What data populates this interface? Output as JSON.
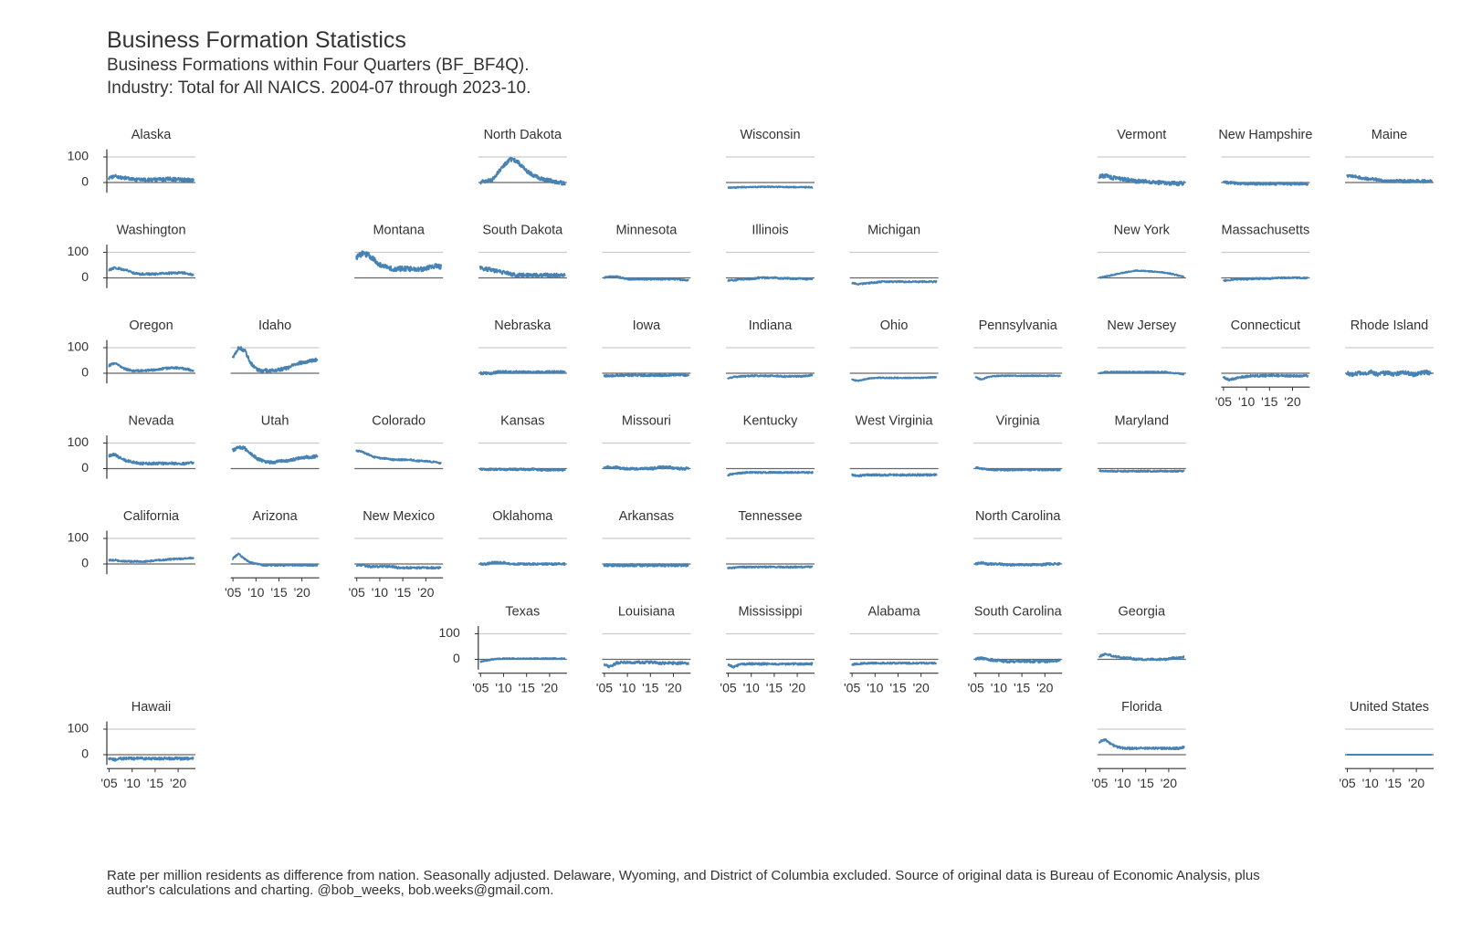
{
  "title": "Business Formation Statistics",
  "subtitle_lines": [
    "Business Formations within Four Quarters (BF_BF4Q).",
    "Industry: Total for All NAICS. 2004-07 through 2023-10."
  ],
  "footnote_lines": [
    "Rate per million residents as difference from nation. Seasonally adjusted. Delaware, Wyoming, and District of Columbia excluded. Source of original data is Bureau of Economic Analysis, plus",
    "author's calculations and charting. @bob_weeks, bob.weeks@gmail.com."
  ],
  "colors": {
    "line": "#4682b4",
    "grid": "#cccccc",
    "zero": "#666666",
    "axis": "#333333",
    "text": "#333333"
  },
  "chart_data": {
    "type": "line",
    "layout": "small-multiples-tile-map",
    "x_range": [
      "2004-07",
      "2023-10"
    ],
    "x_ticks": [
      "'05",
      "'10",
      "'15",
      "'20"
    ],
    "x_tick_years": [
      2005,
      2010,
      2015,
      2020
    ],
    "y_range": [
      -40,
      130
    ],
    "y_ticks": [
      0,
      100
    ],
    "grid": "horizontal at 100",
    "panels": [
      {
        "name": "Alaska",
        "col": 0,
        "row": 0,
        "level": [
          15,
          25,
          20,
          18,
          12,
          10,
          10,
          10,
          12,
          12,
          14,
          12,
          12,
          10,
          10
        ],
        "noise": 7,
        "yaxis": true
      },
      {
        "name": "North Dakota",
        "col": 3,
        "row": 0,
        "level": [
          0,
          5,
          10,
          40,
          70,
          90,
          85,
          60,
          40,
          25,
          15,
          10,
          5,
          0,
          -5
        ],
        "noise": 8
      },
      {
        "name": "Wisconsin",
        "col": 5,
        "row": 0,
        "level": [
          -20,
          -20,
          -18,
          -18,
          -18,
          -17,
          -17,
          -17,
          -17,
          -17,
          -18,
          -18,
          -18,
          -18,
          -19
        ],
        "noise": 2
      },
      {
        "name": "Vermont",
        "col": 8,
        "row": 0,
        "level": [
          25,
          25,
          20,
          15,
          12,
          10,
          5,
          5,
          5,
          0,
          0,
          -3,
          -3,
          -5,
          -2
        ],
        "noise": 8
      },
      {
        "name": "New Hampshire",
        "col": 9,
        "row": 0,
        "level": [
          0,
          0,
          -2,
          -3,
          -5,
          -5,
          -5,
          -5,
          -5,
          -5,
          -5,
          -5,
          -5,
          -5,
          -5
        ],
        "noise": 5
      },
      {
        "name": "Maine",
        "col": 10,
        "row": 0,
        "level": [
          25,
          25,
          20,
          15,
          15,
          10,
          5,
          5,
          5,
          5,
          5,
          5,
          5,
          5,
          5
        ],
        "noise": 6
      },
      {
        "name": "Washington",
        "col": 0,
        "row": 1,
        "level": [
          30,
          40,
          35,
          30,
          20,
          15,
          15,
          15,
          15,
          18,
          18,
          20,
          20,
          18,
          10
        ],
        "noise": 4,
        "yaxis": true
      },
      {
        "name": "Montana",
        "col": 2,
        "row": 1,
        "level": [
          80,
          95,
          90,
          70,
          50,
          40,
          35,
          35,
          35,
          35,
          35,
          35,
          40,
          45,
          45
        ],
        "noise": 10
      },
      {
        "name": "South Dakota",
        "col": 3,
        "row": 1,
        "level": [
          40,
          35,
          30,
          25,
          20,
          15,
          10,
          10,
          10,
          10,
          10,
          10,
          10,
          10,
          10
        ],
        "noise": 8
      },
      {
        "name": "Minnesota",
        "col": 4,
        "row": 1,
        "level": [
          0,
          5,
          5,
          0,
          -5,
          -5,
          -5,
          -5,
          -5,
          -5,
          -5,
          -5,
          -5,
          -8,
          -10
        ],
        "noise": 3
      },
      {
        "name": "Illinois",
        "col": 5,
        "row": 1,
        "level": [
          -10,
          -10,
          -5,
          -5,
          -5,
          0,
          0,
          0,
          0,
          -2,
          -2,
          -3,
          -3,
          -5,
          -5
        ],
        "noise": 3
      },
      {
        "name": "Michigan",
        "col": 6,
        "row": 1,
        "level": [
          -20,
          -25,
          -22,
          -20,
          -18,
          -15,
          -15,
          -15,
          -15,
          -15,
          -15,
          -15,
          -15,
          -15,
          -15
        ],
        "noise": 3
      },
      {
        "name": "New York",
        "col": 8,
        "row": 1,
        "level": [
          0,
          5,
          10,
          15,
          20,
          25,
          28,
          28,
          26,
          25,
          22,
          20,
          15,
          10,
          5
        ],
        "noise": 2
      },
      {
        "name": "Massachusetts",
        "col": 9,
        "row": 1,
        "level": [
          -10,
          -8,
          -5,
          -5,
          -5,
          -3,
          -3,
          -3,
          -2,
          0,
          0,
          0,
          0,
          0,
          0
        ],
        "noise": 3
      },
      {
        "name": "Oregon",
        "col": 0,
        "row": 2,
        "level": [
          30,
          40,
          25,
          15,
          10,
          10,
          10,
          12,
          15,
          18,
          20,
          22,
          20,
          15,
          10
        ],
        "noise": 4,
        "yaxis": true
      },
      {
        "name": "Idaho",
        "col": 1,
        "row": 2,
        "level": [
          60,
          100,
          90,
          40,
          15,
          10,
          10,
          12,
          15,
          20,
          30,
          40,
          45,
          50,
          55
        ],
        "noise": 7
      },
      {
        "name": "Nebraska",
        "col": 3,
        "row": 2,
        "level": [
          0,
          0,
          0,
          5,
          5,
          5,
          5,
          5,
          5,
          5,
          5,
          5,
          5,
          5,
          5
        ],
        "noise": 5
      },
      {
        "name": "Iowa",
        "col": 4,
        "row": 2,
        "level": [
          -10,
          -10,
          -8,
          -8,
          -8,
          -8,
          -8,
          -8,
          -8,
          -8,
          -8,
          -8,
          -5,
          -8,
          -8
        ],
        "noise": 4
      },
      {
        "name": "Indiana",
        "col": 5,
        "row": 2,
        "level": [
          -20,
          -15,
          -12,
          -12,
          -10,
          -10,
          -10,
          -10,
          -10,
          -12,
          -12,
          -12,
          -12,
          -10,
          -8
        ],
        "noise": 3
      },
      {
        "name": "Ohio",
        "col": 6,
        "row": 2,
        "level": [
          -25,
          -30,
          -25,
          -20,
          -18,
          -18,
          -18,
          -18,
          -18,
          -18,
          -18,
          -18,
          -18,
          -16,
          -15
        ],
        "noise": 2
      },
      {
        "name": "Pennsylvania",
        "col": 7,
        "row": 2,
        "level": [
          -15,
          -25,
          -15,
          -12,
          -10,
          -10,
          -10,
          -10,
          -10,
          -10,
          -10,
          -10,
          -10,
          -10,
          -10
        ],
        "noise": 2
      },
      {
        "name": "New Jersey",
        "col": 8,
        "row": 2,
        "level": [
          0,
          5,
          5,
          5,
          5,
          5,
          5,
          5,
          5,
          5,
          5,
          5,
          0,
          0,
          -5
        ],
        "noise": 2
      },
      {
        "name": "Connecticut",
        "col": 9,
        "row": 2,
        "level": [
          -15,
          -25,
          -20,
          -15,
          -12,
          -10,
          -10,
          -10,
          -8,
          -10,
          -10,
          -10,
          -10,
          -10,
          -10
        ],
        "noise": 4,
        "xaxis": true
      },
      {
        "name": "Rhode Island",
        "col": 10,
        "row": 2,
        "level": [
          0,
          -5,
          0,
          0,
          5,
          -5,
          0,
          0,
          -5,
          5,
          0,
          -5,
          0,
          5,
          0
        ],
        "noise": 8
      },
      {
        "name": "Nevada",
        "col": 0,
        "row": 3,
        "level": [
          50,
          55,
          40,
          30,
          25,
          20,
          20,
          20,
          20,
          20,
          20,
          20,
          20,
          20,
          25
        ],
        "noise": 5,
        "yaxis": true
      },
      {
        "name": "Utah",
        "col": 1,
        "row": 3,
        "level": [
          70,
          85,
          80,
          60,
          40,
          30,
          25,
          25,
          30,
          30,
          35,
          40,
          45,
          45,
          50
        ],
        "noise": 6
      },
      {
        "name": "Colorado",
        "col": 2,
        "row": 3,
        "level": [
          70,
          65,
          55,
          45,
          40,
          40,
          35,
          35,
          35,
          35,
          30,
          30,
          28,
          25,
          20
        ],
        "noise": 3
      },
      {
        "name": "Kansas",
        "col": 3,
        "row": 3,
        "level": [
          -3,
          -3,
          -3,
          -3,
          -3,
          -3,
          -3,
          -3,
          -3,
          -3,
          -5,
          -5,
          -5,
          -5,
          -5
        ],
        "noise": 4
      },
      {
        "name": "Missouri",
        "col": 4,
        "row": 3,
        "level": [
          5,
          5,
          5,
          0,
          0,
          0,
          0,
          0,
          0,
          5,
          5,
          5,
          0,
          0,
          0
        ],
        "noise": 5
      },
      {
        "name": "Kentucky",
        "col": 5,
        "row": 3,
        "level": [
          -25,
          -20,
          -18,
          -15,
          -15,
          -15,
          -15,
          -15,
          -15,
          -15,
          -15,
          -15,
          -15,
          -15,
          -15
        ],
        "noise": 3
      },
      {
        "name": "West Virginia",
        "col": 6,
        "row": 3,
        "level": [
          -25,
          -30,
          -25,
          -25,
          -25,
          -25,
          -25,
          -25,
          -25,
          -25,
          -25,
          -25,
          -25,
          -25,
          -25
        ],
        "noise": 4
      },
      {
        "name": "Virginia",
        "col": 7,
        "row": 3,
        "level": [
          5,
          0,
          -3,
          -5,
          -5,
          -5,
          -5,
          -5,
          -5,
          -5,
          -5,
          -5,
          -5,
          -5,
          -5
        ],
        "noise": 3
      },
      {
        "name": "Maryland",
        "col": 8,
        "row": 3,
        "level": [
          -8,
          -10,
          -10,
          -10,
          -10,
          -10,
          -10,
          -10,
          -10,
          -10,
          -10,
          -10,
          -10,
          -10,
          -10
        ],
        "noise": 3
      },
      {
        "name": "California",
        "col": 0,
        "row": 4,
        "level": [
          15,
          15,
          12,
          10,
          10,
          10,
          10,
          12,
          15,
          15,
          18,
          20,
          20,
          22,
          25
        ],
        "noise": 3,
        "yaxis": true
      },
      {
        "name": "Arizona",
        "col": 1,
        "row": 4,
        "level": [
          20,
          40,
          20,
          5,
          0,
          -5,
          -5,
          -5,
          -5,
          -5,
          -5,
          -5,
          -5,
          -5,
          -5
        ],
        "noise": 3,
        "xaxis": true
      },
      {
        "name": "New Mexico",
        "col": 2,
        "row": 4,
        "level": [
          -5,
          -5,
          -10,
          -10,
          -10,
          -10,
          -10,
          -15,
          -15,
          -15,
          -15,
          -15,
          -15,
          -15,
          -15
        ],
        "noise": 4,
        "xaxis": true
      },
      {
        "name": "Oklahoma",
        "col": 3,
        "row": 4,
        "level": [
          0,
          0,
          5,
          5,
          5,
          0,
          0,
          0,
          0,
          0,
          0,
          0,
          0,
          0,
          0
        ],
        "noise": 4
      },
      {
        "name": "Arkansas",
        "col": 4,
        "row": 4,
        "level": [
          -5,
          -5,
          -5,
          -5,
          -5,
          -5,
          -5,
          -5,
          -5,
          -5,
          -5,
          -5,
          -5,
          -5,
          -5
        ],
        "noise": 5
      },
      {
        "name": "Tennessee",
        "col": 5,
        "row": 4,
        "level": [
          -15,
          -15,
          -12,
          -12,
          -12,
          -12,
          -12,
          -12,
          -12,
          -12,
          -12,
          -12,
          -12,
          -12,
          -10
        ],
        "noise": 3
      },
      {
        "name": "North Carolina",
        "col": 7,
        "row": 4,
        "level": [
          0,
          5,
          0,
          0,
          0,
          -3,
          -3,
          -3,
          -3,
          -3,
          -3,
          -3,
          0,
          0,
          0
        ],
        "noise": 4
      },
      {
        "name": "Texas",
        "col": 3,
        "row": 5,
        "level": [
          -10,
          -5,
          0,
          2,
          3,
          3,
          3,
          3,
          3,
          3,
          3,
          3,
          3,
          3,
          3
        ],
        "noise": 2,
        "yaxis": true,
        "xaxis": true
      },
      {
        "name": "Louisiana",
        "col": 4,
        "row": 5,
        "level": [
          -20,
          -30,
          -15,
          -12,
          -12,
          -12,
          -12,
          -12,
          -12,
          -15,
          -15,
          -15,
          -15,
          -15,
          -15
        ],
        "noise": 5,
        "xaxis": true
      },
      {
        "name": "Mississippi",
        "col": 5,
        "row": 5,
        "level": [
          -20,
          -30,
          -20,
          -18,
          -18,
          -18,
          -18,
          -18,
          -18,
          -18,
          -18,
          -18,
          -18,
          -18,
          -18
        ],
        "noise": 4,
        "xaxis": true
      },
      {
        "name": "Alabama",
        "col": 6,
        "row": 5,
        "level": [
          -20,
          -18,
          -15,
          -15,
          -15,
          -15,
          -15,
          -15,
          -15,
          -15,
          -15,
          -15,
          -15,
          -15,
          -15
        ],
        "noise": 3,
        "xaxis": true
      },
      {
        "name": "South Carolina",
        "col": 7,
        "row": 5,
        "level": [
          0,
          5,
          0,
          -3,
          -5,
          -8,
          -8,
          -8,
          -8,
          -8,
          -8,
          -8,
          -8,
          -5,
          -5
        ],
        "noise": 5,
        "xaxis": true
      },
      {
        "name": "Georgia",
        "col": 8,
        "row": 5,
        "level": [
          10,
          20,
          15,
          10,
          5,
          5,
          0,
          0,
          0,
          0,
          0,
          0,
          5,
          5,
          10
        ],
        "noise": 4
      },
      {
        "name": "Hawaii",
        "col": 0,
        "row": 6,
        "level": [
          -15,
          -20,
          -15,
          -15,
          -15,
          -15,
          -15,
          -15,
          -15,
          -15,
          -15,
          -15,
          -15,
          -15,
          -15
        ],
        "noise": 5,
        "yaxis": true,
        "xaxis": true
      },
      {
        "name": "Florida",
        "col": 8,
        "row": 6,
        "level": [
          50,
          60,
          40,
          30,
          25,
          25,
          25,
          25,
          25,
          25,
          25,
          25,
          25,
          25,
          30
        ],
        "noise": 4,
        "xaxis": true
      },
      {
        "name": "United States",
        "col": 10,
        "row": 6,
        "level": [
          0,
          0,
          0,
          0,
          0,
          0,
          0,
          0,
          0,
          0,
          0,
          0,
          0,
          0,
          0
        ],
        "noise": 0,
        "xaxis": true
      }
    ]
  }
}
